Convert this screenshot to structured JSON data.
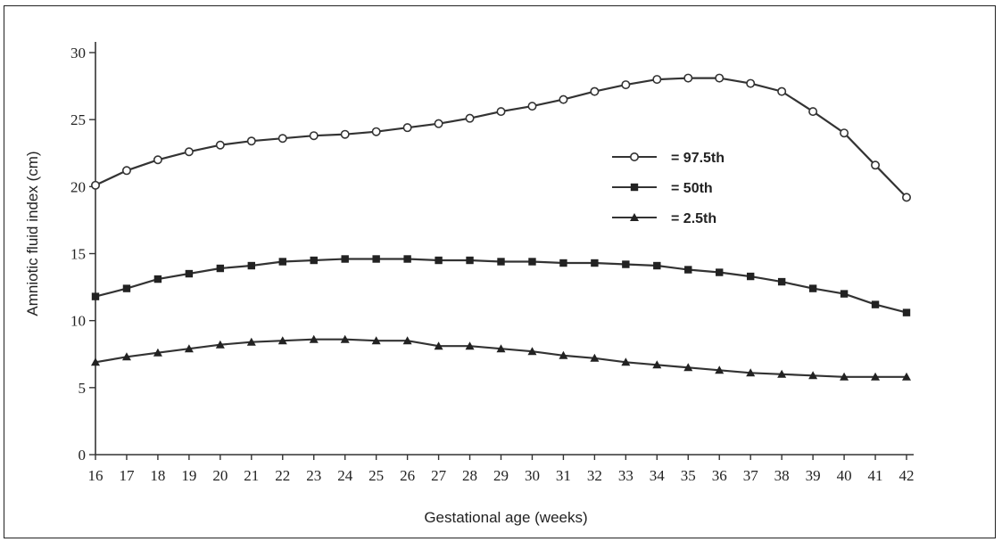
{
  "chart_data": {
    "type": "line",
    "title": "",
    "xlabel": "Gestational age (weeks)",
    "ylabel": "Amniotic fluid index (cm)",
    "x": [
      16,
      17,
      18,
      19,
      20,
      21,
      22,
      23,
      24,
      25,
      26,
      27,
      28,
      29,
      30,
      31,
      32,
      33,
      34,
      35,
      36,
      37,
      38,
      39,
      40,
      41,
      42
    ],
    "xlim": [
      16,
      42
    ],
    "ylim": [
      0,
      30
    ],
    "yticks": [
      0,
      5,
      10,
      15,
      20,
      25,
      30
    ],
    "grid": false,
    "legend_position": "right",
    "series": [
      {
        "name": "= 97.5th",
        "marker": "circle",
        "values": [
          20.1,
          21.2,
          22.0,
          22.6,
          23.1,
          23.4,
          23.6,
          23.8,
          23.9,
          24.1,
          24.4,
          24.7,
          25.1,
          25.6,
          26.0,
          26.5,
          27.1,
          27.6,
          28.0,
          28.1,
          28.1,
          27.7,
          27.1,
          25.6,
          24.0,
          21.6,
          19.2
        ]
      },
      {
        "name": "= 50th",
        "marker": "square",
        "values": [
          11.8,
          12.4,
          13.1,
          13.5,
          13.9,
          14.1,
          14.4,
          14.5,
          14.6,
          14.6,
          14.6,
          14.5,
          14.5,
          14.4,
          14.4,
          14.3,
          14.3,
          14.2,
          14.1,
          13.8,
          13.6,
          13.3,
          12.9,
          12.4,
          12.0,
          11.2,
          10.6
        ]
      },
      {
        "name": "= 2.5th",
        "marker": "triangle",
        "values": [
          6.9,
          7.3,
          7.6,
          7.9,
          8.2,
          8.4,
          8.5,
          8.6,
          8.6,
          8.5,
          8.5,
          8.1,
          8.1,
          7.9,
          7.7,
          7.4,
          7.2,
          6.9,
          6.7,
          6.5,
          6.3,
          6.1,
          6.0,
          5.9,
          5.8,
          5.8,
          5.8
        ]
      }
    ]
  }
}
